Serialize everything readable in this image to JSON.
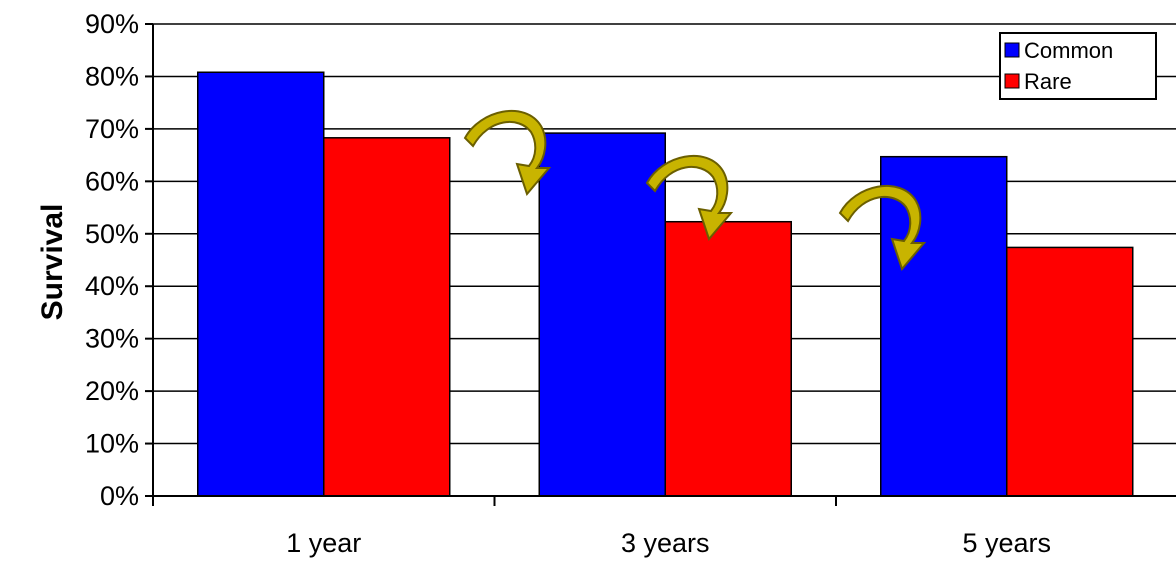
{
  "chart_data": {
    "type": "bar",
    "categories": [
      "1 year",
      "3 years",
      "5 years"
    ],
    "series": [
      {
        "name": "Common",
        "values": [
          80.8,
          69.2,
          64.7
        ]
      },
      {
        "name": "Rare",
        "values": [
          68.3,
          52.3,
          47.4
        ]
      }
    ],
    "ylabel": "Survival",
    "xlabel": "",
    "ylim": [
      0,
      90
    ],
    "yticks": [
      "0%",
      "10%",
      "20%",
      "30%",
      "40%",
      "50%",
      "60%",
      "70%",
      "80%",
      "90%"
    ],
    "grid": true,
    "legend_position": "top-right",
    "annotations": [
      "curved-arrow",
      "curved-arrow",
      "curved-arrow"
    ]
  },
  "colors": {
    "Common": "#0000ff",
    "Rare": "#ff0000",
    "arrow": "#c8b400"
  }
}
